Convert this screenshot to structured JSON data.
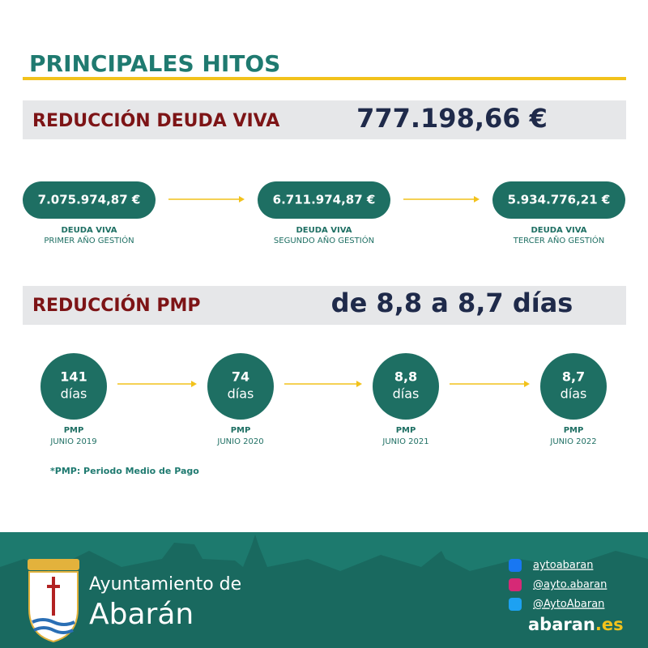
{
  "header": {
    "title": "PRINCIPALES HITOS"
  },
  "debt": {
    "label": "REDUCCIÓN DEUDA VIVA",
    "total": "777.198,66 €",
    "steps": [
      {
        "amount": "7.075.974,87 €",
        "label": "DEUDA VIVA",
        "sublabel": "PRIMER AÑO GESTIÓN"
      },
      {
        "amount": "6.711.974,87 €",
        "label": "DEUDA VIVA",
        "sublabel": "SEGUNDO AÑO GESTIÓN"
      },
      {
        "amount": "5.934.776,21 €",
        "label": "DEUDA VIVA",
        "sublabel": "TERCER AÑO GESTIÓN"
      }
    ]
  },
  "pmp": {
    "label": "REDUCCIÓN PMP",
    "summary": "de 8,8 a 8,7 días",
    "steps": [
      {
        "value": "141",
        "unit": "días",
        "label": "PMP",
        "sublabel": "JUNIO 2019"
      },
      {
        "value": "74",
        "unit": "días",
        "label": "PMP",
        "sublabel": "JUNIO 2020"
      },
      {
        "value": "8,8",
        "unit": "días",
        "label": "PMP",
        "sublabel": "JUNIO 2021"
      },
      {
        "value": "8,7",
        "unit": "días",
        "label": "PMP",
        "sublabel": "JUNIO 2022"
      }
    ]
  },
  "footnote": "*PMP: Periodo Medio de Pago",
  "footer": {
    "org_line1": "Ayuntamiento de",
    "org_line2": "Abarán",
    "social": [
      "aytoabaran",
      "@ayto.abaran",
      "@AytoAbaran"
    ],
    "site_name": "abaran",
    "site_tld": ".es"
  }
}
